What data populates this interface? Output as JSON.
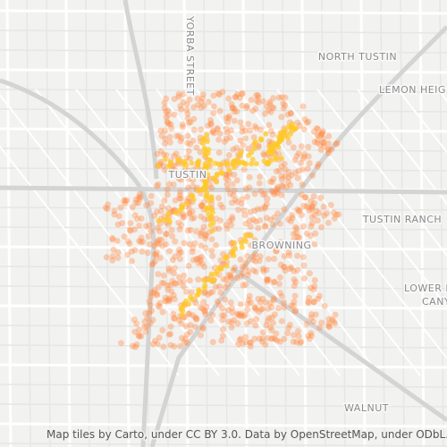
{
  "map": {
    "labels": {
      "north_tustin": "NORTH TUSTIN",
      "lemon_heights": "LEMON HEIG",
      "tustin_ranch": "TUSTIN RANCH",
      "lower_peters_1": "LOWER P",
      "lower_peters_2": "CANY",
      "browning": "BROWNING",
      "tustin": "TUSTIN",
      "walnut": "WALNUT",
      "yorba_street": "YORBA STREET"
    },
    "attribution": "Map tiles by Carto, under CC BY 3.0. Data by OpenStreetMap, under ODbL."
  }
}
